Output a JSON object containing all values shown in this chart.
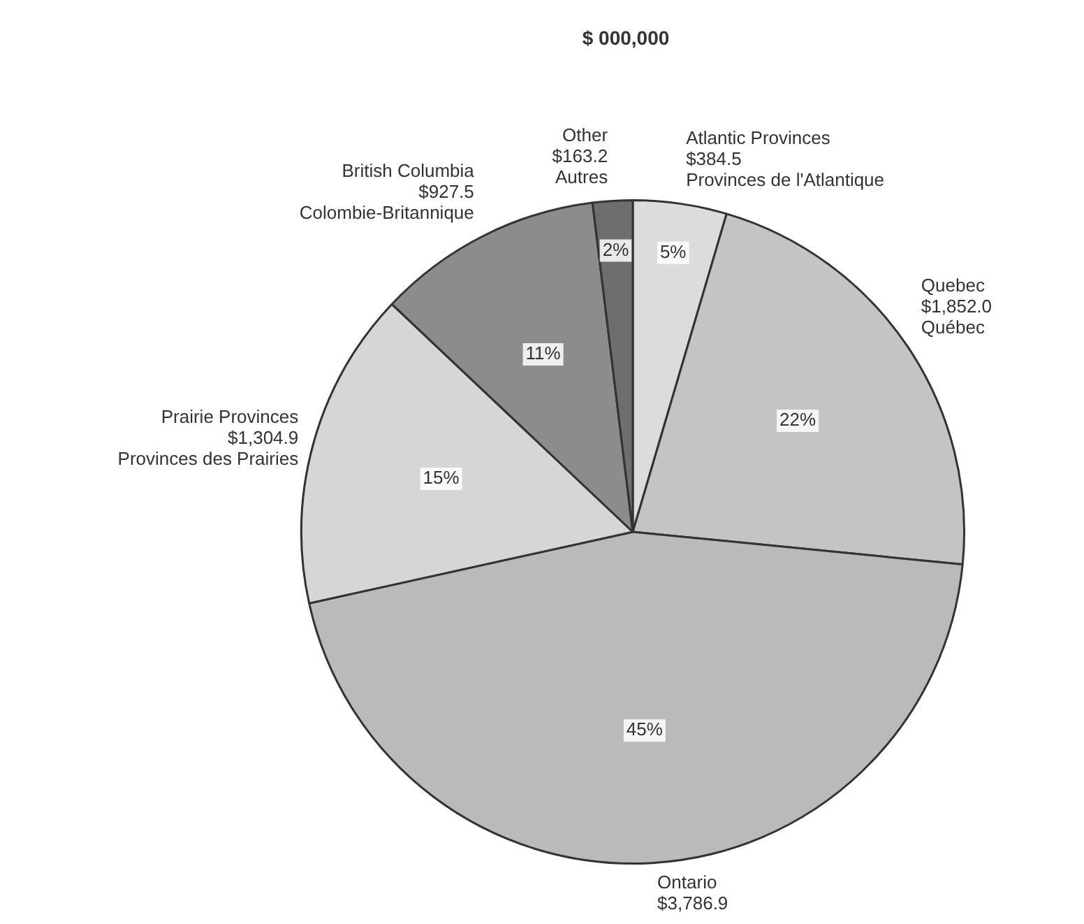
{
  "chart_data": {
    "type": "pie",
    "title": "$ 000,000",
    "categories": [
      "Atlantic Provinces\nProvinces de l'Atlantique",
      "Quebec\nQuébec",
      "Ontario",
      "Prairie Provinces\nProvinces des Prairies",
      "British Columbia\nColombie-Britannique",
      "Other\nAutres"
    ],
    "values": [
      384.5,
      1852.0,
      3786.9,
      1304.9,
      927.5,
      163.2
    ],
    "value_labels": [
      "$384.5",
      "$1,852.0",
      "$3,786.9",
      "$1,304.9",
      "$927.5",
      "$163.2"
    ],
    "colors": [
      "#dcdcdc",
      "#c4c4c4",
      "#bababa",
      "#d6d6d6",
      "#8c8c8c",
      "#6e6e6e"
    ],
    "annotations": [
      {
        "text": "5%",
        "x": "Atlantic Provinces\nProvinces de l'Atlantique"
      },
      {
        "text": "22%",
        "x": "Quebec\nQuébec"
      },
      {
        "text": "45%",
        "x": "Ontario"
      },
      {
        "text": "15%",
        "x": "Prairie Provinces\nProvinces des Prairies"
      },
      {
        "text": "11%",
        "x": "British Columbia\nColombie-Britannique"
      },
      {
        "text": "2%",
        "x": "Other\nAutres"
      }
    ],
    "legend": false
  }
}
